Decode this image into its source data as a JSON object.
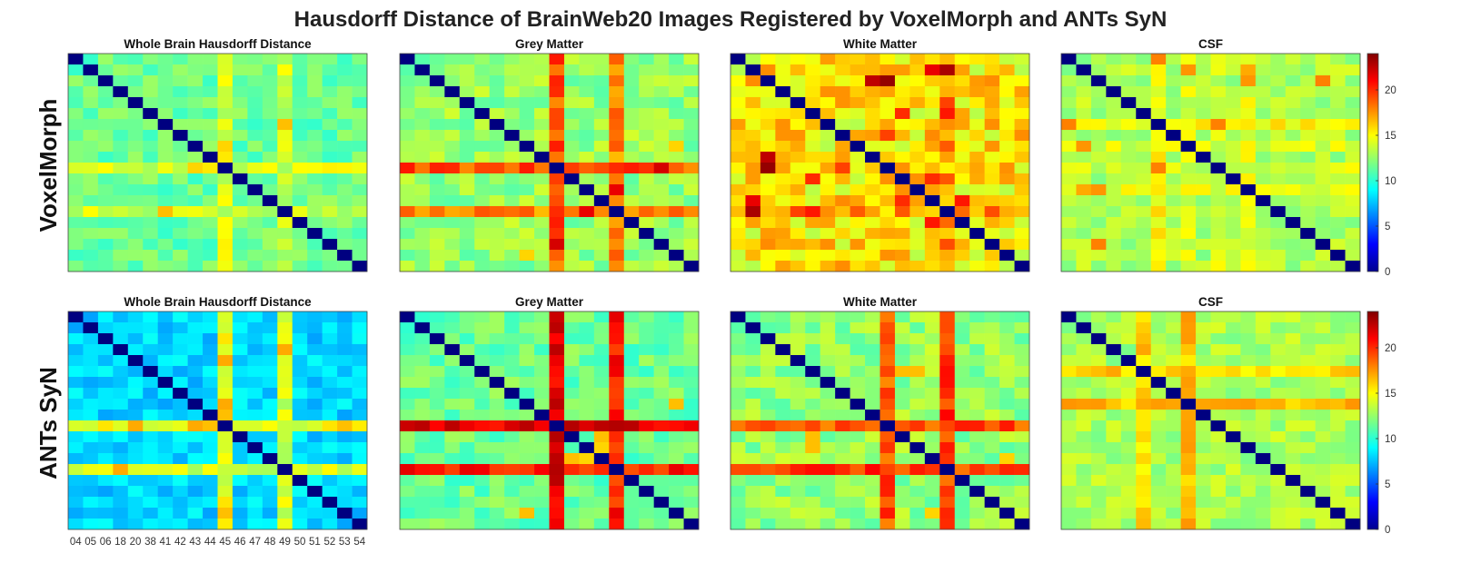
{
  "figure_title": "Hausdorff Distance of BrainWeb20 Images Registered by VoxelMorph and ANTs SyN",
  "row_labels": [
    "VoxelMorph",
    "ANTs SyN"
  ],
  "panel_titles": [
    "Whole Brain Hausdorff Distance",
    "Grey Matter",
    "White Matter",
    "CSF"
  ],
  "subject_ids": [
    "04",
    "05",
    "06",
    "18",
    "20",
    "38",
    "41",
    "42",
    "43",
    "44",
    "45",
    "46",
    "47",
    "48",
    "49",
    "50",
    "51",
    "52",
    "53",
    "54"
  ],
  "colorbar": {
    "colormap": "jet",
    "colors": [
      "#00008f",
      "#0000ff",
      "#00ffff",
      "#ffff00",
      "#ff0000",
      "#800000"
    ],
    "ticks": [
      "0",
      "5",
      "10",
      "15",
      "20"
    ],
    "range": [
      0,
      24
    ]
  },
  "chart_data": [
    {
      "type": "heatmap",
      "row": "VoxelMorph",
      "panel": "Whole Brain Hausdorff Distance",
      "size": 20,
      "diagonal": 0,
      "range": [
        0,
        24
      ],
      "background_mean": 11.5,
      "background_spread": 1.3,
      "highlight_rows": [
        {
          "index": 10,
          "mean": 14.0
        },
        {
          "index": 15,
          "mean": 11.0
        }
      ],
      "highlight_cols": [
        {
          "index": 14,
          "mean": 13.5
        }
      ],
      "spots": [
        {
          "r": 6,
          "c": 14,
          "v": 16.5
        },
        {
          "r": 1,
          "c": 14,
          "v": 15.0
        },
        {
          "r": 10,
          "c": 8,
          "v": 16.0
        },
        {
          "r": 10,
          "c": 9,
          "v": 15.5
        },
        {
          "r": 10,
          "c": 2,
          "v": 15.0
        }
      ]
    },
    {
      "type": "heatmap",
      "row": "VoxelMorph",
      "panel": "Grey Matter",
      "size": 20,
      "diagonal": 0,
      "range": [
        0,
        24
      ],
      "background_mean": 12.5,
      "background_spread": 1.5,
      "highlight_rows": [
        {
          "index": 10,
          "mean": 19.0
        }
      ],
      "highlight_cols": [
        {
          "index": 14,
          "mean": 18.0
        }
      ],
      "spots": [
        {
          "r": 10,
          "c": 17,
          "v": 22.0
        },
        {
          "r": 12,
          "c": 14,
          "v": 21.5
        },
        {
          "r": 10,
          "c": 14,
          "v": 20.0
        },
        {
          "r": 8,
          "c": 18,
          "v": 16.0
        }
      ]
    },
    {
      "type": "heatmap",
      "row": "VoxelMorph",
      "panel": "White Matter",
      "size": 20,
      "diagonal": 0,
      "range": [
        0,
        24
      ],
      "background_mean": 15.5,
      "background_spread": 2.3,
      "highlight_rows": [],
      "highlight_cols": [
        {
          "index": 14,
          "mean": 17.5
        }
      ],
      "spots": [
        {
          "r": 1,
          "c": 13,
          "v": 21.5
        },
        {
          "r": 1,
          "c": 14,
          "v": 23.0
        },
        {
          "r": 9,
          "c": 2,
          "v": 22.5
        },
        {
          "r": 10,
          "c": 2,
          "v": 23.5
        },
        {
          "r": 5,
          "c": 11,
          "v": 20.0
        },
        {
          "r": 5,
          "c": 14,
          "v": 20.5
        },
        {
          "r": 13,
          "c": 11,
          "v": 20.0
        },
        {
          "r": 13,
          "c": 15,
          "v": 20.5
        },
        {
          "r": 10,
          "c": 7,
          "v": 19.5
        }
      ]
    },
    {
      "type": "heatmap",
      "row": "VoxelMorph",
      "panel": "CSF",
      "size": 20,
      "diagonal": 0,
      "range": [
        0,
        24
      ],
      "background_mean": 13.0,
      "background_spread": 1.2,
      "highlight_rows": [
        {
          "index": 6,
          "mean": 15.0
        },
        {
          "index": 10,
          "mean": 14.0
        }
      ],
      "highlight_cols": [
        {
          "index": 8,
          "mean": 14.0
        },
        {
          "index": 12,
          "mean": 14.5
        }
      ],
      "spots": [
        {
          "r": 1,
          "c": 8,
          "v": 17.5
        },
        {
          "r": 1,
          "c": 12,
          "v": 17.0
        },
        {
          "r": 2,
          "c": 17,
          "v": 18.0
        },
        {
          "r": 6,
          "c": 0,
          "v": 18.0
        },
        {
          "r": 6,
          "c": 10,
          "v": 18.0
        },
        {
          "r": 12,
          "c": 2,
          "v": 17.5
        }
      ]
    },
    {
      "type": "heatmap",
      "row": "ANTs SyN",
      "panel": "Whole Brain Hausdorff Distance",
      "size": 20,
      "diagonal": 0,
      "range": [
        0,
        24
      ],
      "background_mean": 8.0,
      "background_spread": 1.2,
      "highlight_rows": [
        {
          "index": 10,
          "mean": 14.5
        }
      ],
      "highlight_cols": [
        {
          "index": 14,
          "mean": 14.0
        }
      ],
      "spots": [
        {
          "r": 10,
          "c": 4,
          "v": 17.0
        },
        {
          "r": 10,
          "c": 8,
          "v": 17.0
        },
        {
          "r": 10,
          "c": 9,
          "v": 16.5
        },
        {
          "r": 3,
          "c": 14,
          "v": 17.0
        },
        {
          "r": 10,
          "c": 18,
          "v": 16.5
        }
      ]
    },
    {
      "type": "heatmap",
      "row": "ANTs SyN",
      "panel": "Grey Matter",
      "size": 20,
      "diagonal": 0,
      "range": [
        0,
        24
      ],
      "background_mean": 11.5,
      "background_spread": 1.4,
      "highlight_rows": [
        {
          "index": 10,
          "mean": 21.5
        }
      ],
      "highlight_cols": [
        {
          "index": 14,
          "mean": 20.5
        }
      ],
      "spots": [
        {
          "r": 13,
          "c": 11,
          "v": 16.5
        },
        {
          "r": 8,
          "c": 18,
          "v": 16.5
        },
        {
          "r": 13,
          "c": 12,
          "v": 16.0
        }
      ]
    },
    {
      "type": "heatmap",
      "row": "ANTs SyN",
      "panel": "White Matter",
      "size": 20,
      "diagonal": 0,
      "range": [
        0,
        24
      ],
      "background_mean": 12.5,
      "background_spread": 1.5,
      "highlight_rows": [
        {
          "index": 10,
          "mean": 19.0
        }
      ],
      "highlight_cols": [
        {
          "index": 14,
          "mean": 19.5
        }
      ],
      "spots": [
        {
          "r": 5,
          "c": 11,
          "v": 16.5
        },
        {
          "r": 5,
          "c": 12,
          "v": 16.5
        },
        {
          "r": 13,
          "c": 18,
          "v": 16.0
        }
      ]
    },
    {
      "type": "heatmap",
      "row": "ANTs SyN",
      "panel": "CSF",
      "size": 20,
      "diagonal": 0,
      "range": [
        0,
        24
      ],
      "background_mean": 13.0,
      "background_spread": 1.2,
      "highlight_rows": [
        {
          "index": 5,
          "mean": 16.0
        }
      ],
      "highlight_cols": [
        {
          "index": 8,
          "mean": 16.5
        }
      ],
      "spots": [
        {
          "r": 5,
          "c": 8,
          "v": 17.0
        },
        {
          "r": 0,
          "c": 8,
          "v": 17.5
        }
      ]
    }
  ]
}
